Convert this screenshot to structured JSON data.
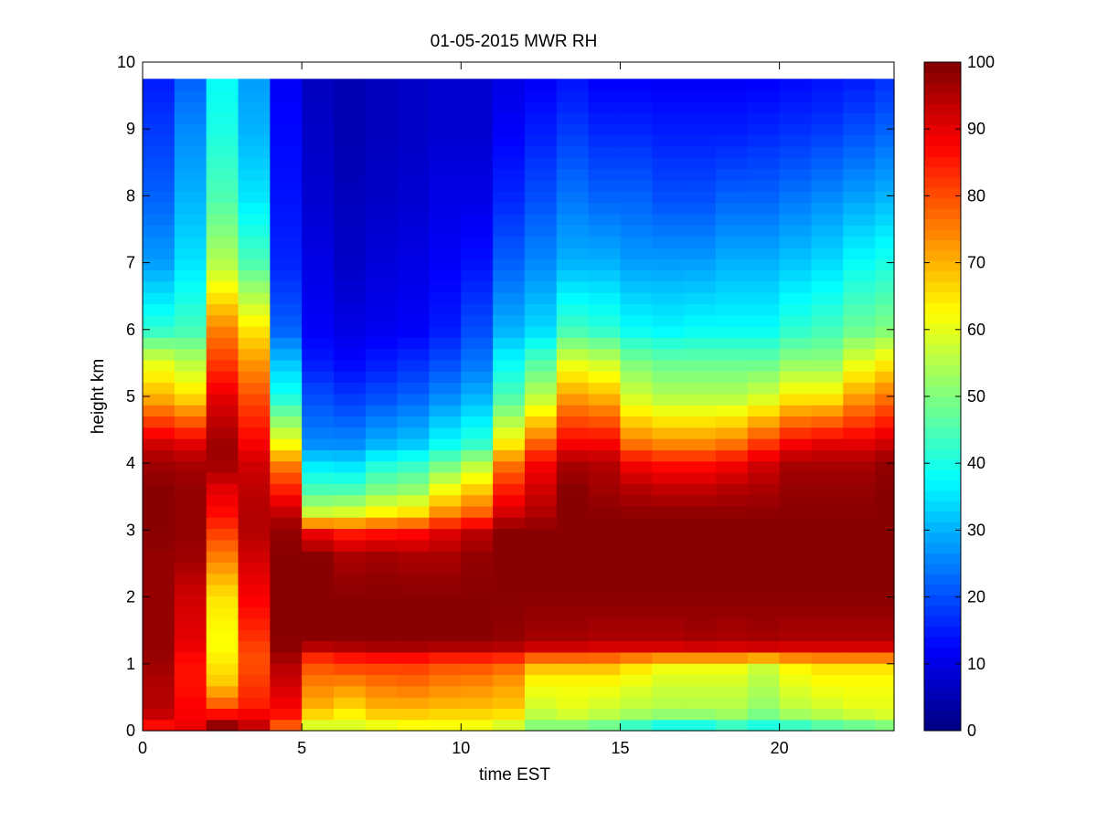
{
  "chart_data": {
    "type": "heatmap",
    "title": "01-05-2015 MWR RH",
    "xlabel": "time EST",
    "ylabel": "height km",
    "xlim": [
      0,
      23.6
    ],
    "ylim": [
      0,
      10
    ],
    "x_ticks": [
      0,
      5,
      10,
      15,
      20
    ],
    "y_ticks": [
      0,
      1,
      2,
      3,
      4,
      5,
      6,
      7,
      8,
      9,
      10
    ],
    "x_tick_labels": [
      "0",
      "5",
      "10",
      "15",
      "20"
    ],
    "y_tick_labels": [
      "0",
      "1",
      "2",
      "3",
      "4",
      "5",
      "6",
      "7",
      "8",
      "9",
      "10"
    ],
    "time_start": 0,
    "time_step": 1,
    "height_top": 9.75,
    "colormap": "jet",
    "colorbar": {
      "min": 0,
      "max": 100,
      "ticks": [
        0,
        10,
        20,
        30,
        40,
        50,
        60,
        70,
        80,
        90,
        100
      ],
      "tick_labels": [
        "0",
        "10",
        "20",
        "30",
        "40",
        "50",
        "60",
        "70",
        "80",
        "90",
        "100"
      ]
    },
    "grid": false,
    "profile_key_heights_km": [
      0,
      0.1,
      0.2,
      0.35,
      0.7,
      1.0,
      1.2,
      1.3,
      2.0,
      2.6,
      3.0,
      3.2,
      3.6,
      4.0,
      4.3,
      5.0,
      5.5,
      6.0,
      7.0,
      8.0,
      9.0,
      9.75
    ],
    "rh_profiles": [
      [
        80,
        88,
        92,
        95,
        95,
        97,
        98,
        98,
        98,
        98,
        99,
        99,
        99,
        97,
        92,
        70,
        60,
        42,
        28,
        22,
        18,
        15
      ],
      [
        85,
        90,
        88,
        88,
        86,
        86,
        88,
        90,
        92,
        97,
        98,
        98,
        98,
        96,
        90,
        66,
        56,
        44,
        35,
        30,
        26,
        22
      ],
      [
        98,
        98,
        90,
        80,
        68,
        65,
        63,
        62,
        65,
        75,
        82,
        86,
        90,
        97,
        97,
        90,
        82,
        75,
        55,
        45,
        40,
        38
      ],
      [
        92,
        93,
        90,
        85,
        82,
        80,
        80,
        82,
        88,
        92,
        95,
        95,
        94,
        92,
        88,
        80,
        73,
        65,
        45,
        35,
        30,
        28
      ],
      [
        65,
        82,
        85,
        88,
        92,
        95,
        98,
        99,
        99,
        99,
        98,
        95,
        85,
        75,
        62,
        40,
        32,
        22,
        16,
        14,
        13,
        12
      ],
      [
        55,
        60,
        65,
        70,
        75,
        80,
        88,
        99,
        99,
        99,
        88,
        60,
        45,
        35,
        26,
        20,
        15,
        12,
        10,
        8,
        7,
        6
      ],
      [
        55,
        60,
        62,
        66,
        74,
        82,
        90,
        99,
        99,
        96,
        84,
        62,
        45,
        34,
        26,
        18,
        13,
        10,
        7,
        6,
        5,
        5
      ],
      [
        55,
        62,
        66,
        70,
        76,
        82,
        92,
        99,
        99,
        97,
        85,
        66,
        50,
        40,
        30,
        20,
        15,
        11,
        9,
        7,
        6,
        6
      ],
      [
        60,
        63,
        66,
        70,
        77,
        82,
        92,
        99,
        99,
        96,
        86,
        68,
        52,
        42,
        32,
        22,
        17,
        12,
        10,
        8,
        7,
        7
      ],
      [
        58,
        63,
        65,
        69,
        75,
        80,
        90,
        99,
        99,
        96,
        90,
        76,
        62,
        48,
        38,
        26,
        20,
        15,
        12,
        10,
        8,
        8
      ],
      [
        55,
        63,
        65,
        69,
        74,
        80,
        90,
        99,
        99,
        98,
        94,
        80,
        68,
        55,
        42,
        30,
        24,
        20,
        14,
        10,
        8,
        8
      ],
      [
        53,
        60,
        64,
        68,
        72,
        78,
        90,
        98,
        99,
        99,
        99,
        93,
        85,
        76,
        64,
        45,
        38,
        30,
        22,
        16,
        12,
        10
      ],
      [
        45,
        52,
        55,
        58,
        62,
        70,
        87,
        96,
        99,
        99,
        99,
        96,
        92,
        88,
        78,
        56,
        46,
        34,
        26,
        20,
        15,
        12
      ],
      [
        45,
        52,
        57,
        60,
        62,
        70,
        87,
        96,
        99,
        99,
        99,
        99,
        99,
        96,
        88,
        72,
        60,
        44,
        30,
        24,
        18,
        14
      ],
      [
        42,
        50,
        55,
        58,
        62,
        70,
        86,
        95,
        99,
        99,
        99,
        99,
        97,
        95,
        88,
        70,
        58,
        42,
        30,
        22,
        16,
        12
      ],
      [
        35,
        45,
        52,
        56,
        60,
        66,
        86,
        95,
        99,
        99,
        99,
        99,
        95,
        88,
        76,
        58,
        50,
        38,
        28,
        22,
        16,
        12
      ],
      [
        30,
        42,
        50,
        55,
        58,
        62,
        86,
        95,
        99,
        99,
        99,
        99,
        94,
        86,
        74,
        55,
        48,
        37,
        28,
        20,
        15,
        12
      ],
      [
        30,
        42,
        50,
        55,
        58,
        62,
        86,
        96,
        99,
        99,
        99,
        99,
        94,
        86,
        74,
        55,
        48,
        38,
        28,
        20,
        15,
        12
      ],
      [
        35,
        45,
        52,
        55,
        58,
        62,
        86,
        95,
        99,
        99,
        99,
        99,
        95,
        88,
        76,
        55,
        48,
        38,
        30,
        22,
        15,
        12
      ],
      [
        32,
        42,
        48,
        52,
        55,
        58,
        86,
        96,
        99,
        99,
        99,
        99,
        96,
        92,
        82,
        58,
        48,
        38,
        30,
        22,
        16,
        12
      ],
      [
        35,
        45,
        52,
        56,
        60,
        64,
        86,
        95,
        99,
        99,
        99,
        99,
        98,
        96,
        88,
        64,
        52,
        42,
        32,
        24,
        17,
        13
      ],
      [
        38,
        48,
        54,
        58,
        62,
        66,
        86,
        95,
        99,
        99,
        99,
        99,
        98,
        96,
        90,
        64,
        52,
        44,
        34,
        26,
        18,
        14
      ],
      [
        40,
        50,
        56,
        60,
        62,
        66,
        86,
        95,
        99,
        99,
        99,
        99,
        98,
        96,
        90,
        72,
        60,
        48,
        38,
        28,
        20,
        15
      ],
      [
        42,
        52,
        58,
        60,
        62,
        66,
        86,
        95,
        99,
        99,
        99,
        99,
        99,
        98,
        92,
        76,
        64,
        50,
        40,
        30,
        22,
        17
      ]
    ]
  }
}
